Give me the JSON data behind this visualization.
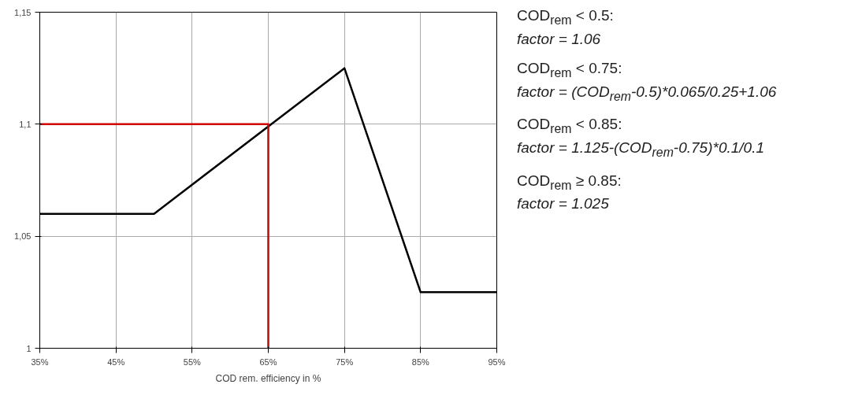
{
  "chart_data": {
    "type": "line",
    "xlabel": "COD rem. efficiency in %",
    "xlim": [
      35,
      95
    ],
    "ylim": [
      1,
      1.15
    ],
    "xticks": [
      {
        "value": 35,
        "label": "35%"
      },
      {
        "value": 45,
        "label": "45%"
      },
      {
        "value": 55,
        "label": "55%"
      },
      {
        "value": 65,
        "label": "65%"
      },
      {
        "value": 75,
        "label": "75%"
      },
      {
        "value": 85,
        "label": "85%"
      },
      {
        "value": 95,
        "label": "95%"
      }
    ],
    "yticks": [
      1,
      {
        "value": 1.05,
        "label": "1,05"
      },
      {
        "value": 1.1,
        "label": "1,1"
      },
      {
        "value": 1.15,
        "label": "1,15"
      }
    ],
    "grid": true,
    "marker": "none",
    "line_style": "solid",
    "series": [
      {
        "color": "#000000",
        "x": [
          35,
          50,
          75,
          85,
          95
        ],
        "values": [
          1.06,
          1.06,
          1.125,
          1.025,
          1.025
        ]
      },
      {
        "color": "#d00000",
        "x": [
          35,
          65,
          65
        ],
        "values": [
          1.1,
          1.1,
          1.0
        ]
      }
    ],
    "annotations": [
      "COD$_{rem}$ < 0.5:",
      "factor = 1.06",
      "COD$_{rem}$ < 0.75:",
      "factor = (COD$_{rem}$-0.5)*0.065/0.25+1.06",
      "COD$_{rem}$ < 0.85:",
      "factor = 1.125-(COD$_{rem}$-0.75)*0.1/0.1",
      "COD$_{rem}$ ≥ 0.85:",
      "factor = 1.025"
    ]
  }
}
